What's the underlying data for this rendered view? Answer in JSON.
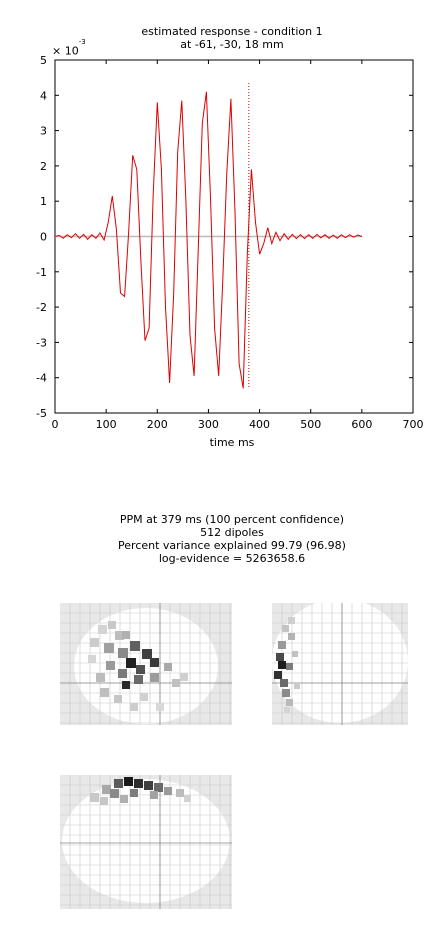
{
  "chart_data": {
    "type": "line",
    "title": "estimated response - condition 1",
    "subtitle": "at -61, -30, 18 mm",
    "xlabel": "time  ms",
    "ylabel": "",
    "y_exponent_label": "× 10",
    "y_exponent_power": "-3",
    "xlim": [
      0,
      700
    ],
    "ylim": [
      -5,
      5
    ],
    "xticks": [
      "0",
      "100",
      "200",
      "300",
      "400",
      "500",
      "600",
      "700"
    ],
    "yticks": [
      "5",
      "4",
      "3",
      "2",
      "1",
      "0",
      "-1",
      "-2",
      "-3",
      "-4",
      "-5"
    ],
    "grid": false,
    "marker_time": 379,
    "series": [
      {
        "color": "#dd0000",
        "x": [
          0,
          8,
          16,
          24,
          32,
          40,
          48,
          56,
          64,
          72,
          80,
          88,
          96,
          104,
          112,
          120,
          128,
          136,
          144,
          152,
          160,
          168,
          176,
          184,
          192,
          200,
          208,
          216,
          224,
          232,
          240,
          248,
          256,
          264,
          272,
          280,
          288,
          296,
          304,
          312,
          320,
          328,
          336,
          344,
          352,
          360,
          368,
          376,
          384,
          392,
          400,
          408,
          416,
          424,
          432,
          440,
          448,
          456,
          464,
          472,
          480,
          488,
          496,
          504,
          512,
          520,
          528,
          536,
          544,
          552,
          560,
          568,
          576,
          584,
          592,
          600
        ],
        "y": [
          0.0,
          0.03,
          -0.05,
          0.05,
          -0.03,
          0.08,
          -0.05,
          0.06,
          -0.08,
          0.05,
          -0.05,
          0.1,
          -0.1,
          0.4,
          1.15,
          0.2,
          -1.6,
          -1.7,
          0.1,
          2.3,
          1.9,
          -0.7,
          -2.95,
          -2.6,
          1.2,
          3.8,
          1.9,
          -2.0,
          -4.15,
          -1.6,
          2.4,
          3.85,
          1.0,
          -2.8,
          -3.95,
          -0.4,
          3.2,
          4.1,
          1.1,
          -2.6,
          -3.95,
          -1.3,
          1.8,
          3.9,
          0.7,
          -3.6,
          -4.3,
          -0.5,
          1.9,
          0.4,
          -0.5,
          -0.2,
          0.25,
          -0.2,
          0.12,
          -0.12,
          0.08,
          -0.08,
          0.06,
          -0.06,
          0.05,
          -0.06,
          0.05,
          -0.05,
          0.06,
          -0.04,
          0.05,
          -0.05,
          0.04,
          -0.05,
          0.05,
          -0.03,
          0.05,
          -0.02,
          0.04,
          0.0
        ]
      },
      {
        "color": "#bbbbbb",
        "x": [
          0,
          600
        ],
        "y": [
          0.0,
          0.0
        ]
      }
    ]
  },
  "ppm": {
    "line1": "PPM at 379 ms (100 percent confidence)",
    "line2": "512 dipoles",
    "line3": "Percent variance explained 99.79 (96.98)",
    "line4": "log-evidence = 5263658.6"
  },
  "brain_views": [
    {
      "view": "axial"
    },
    {
      "view": "sagittal"
    },
    {
      "view": "coronal"
    }
  ]
}
